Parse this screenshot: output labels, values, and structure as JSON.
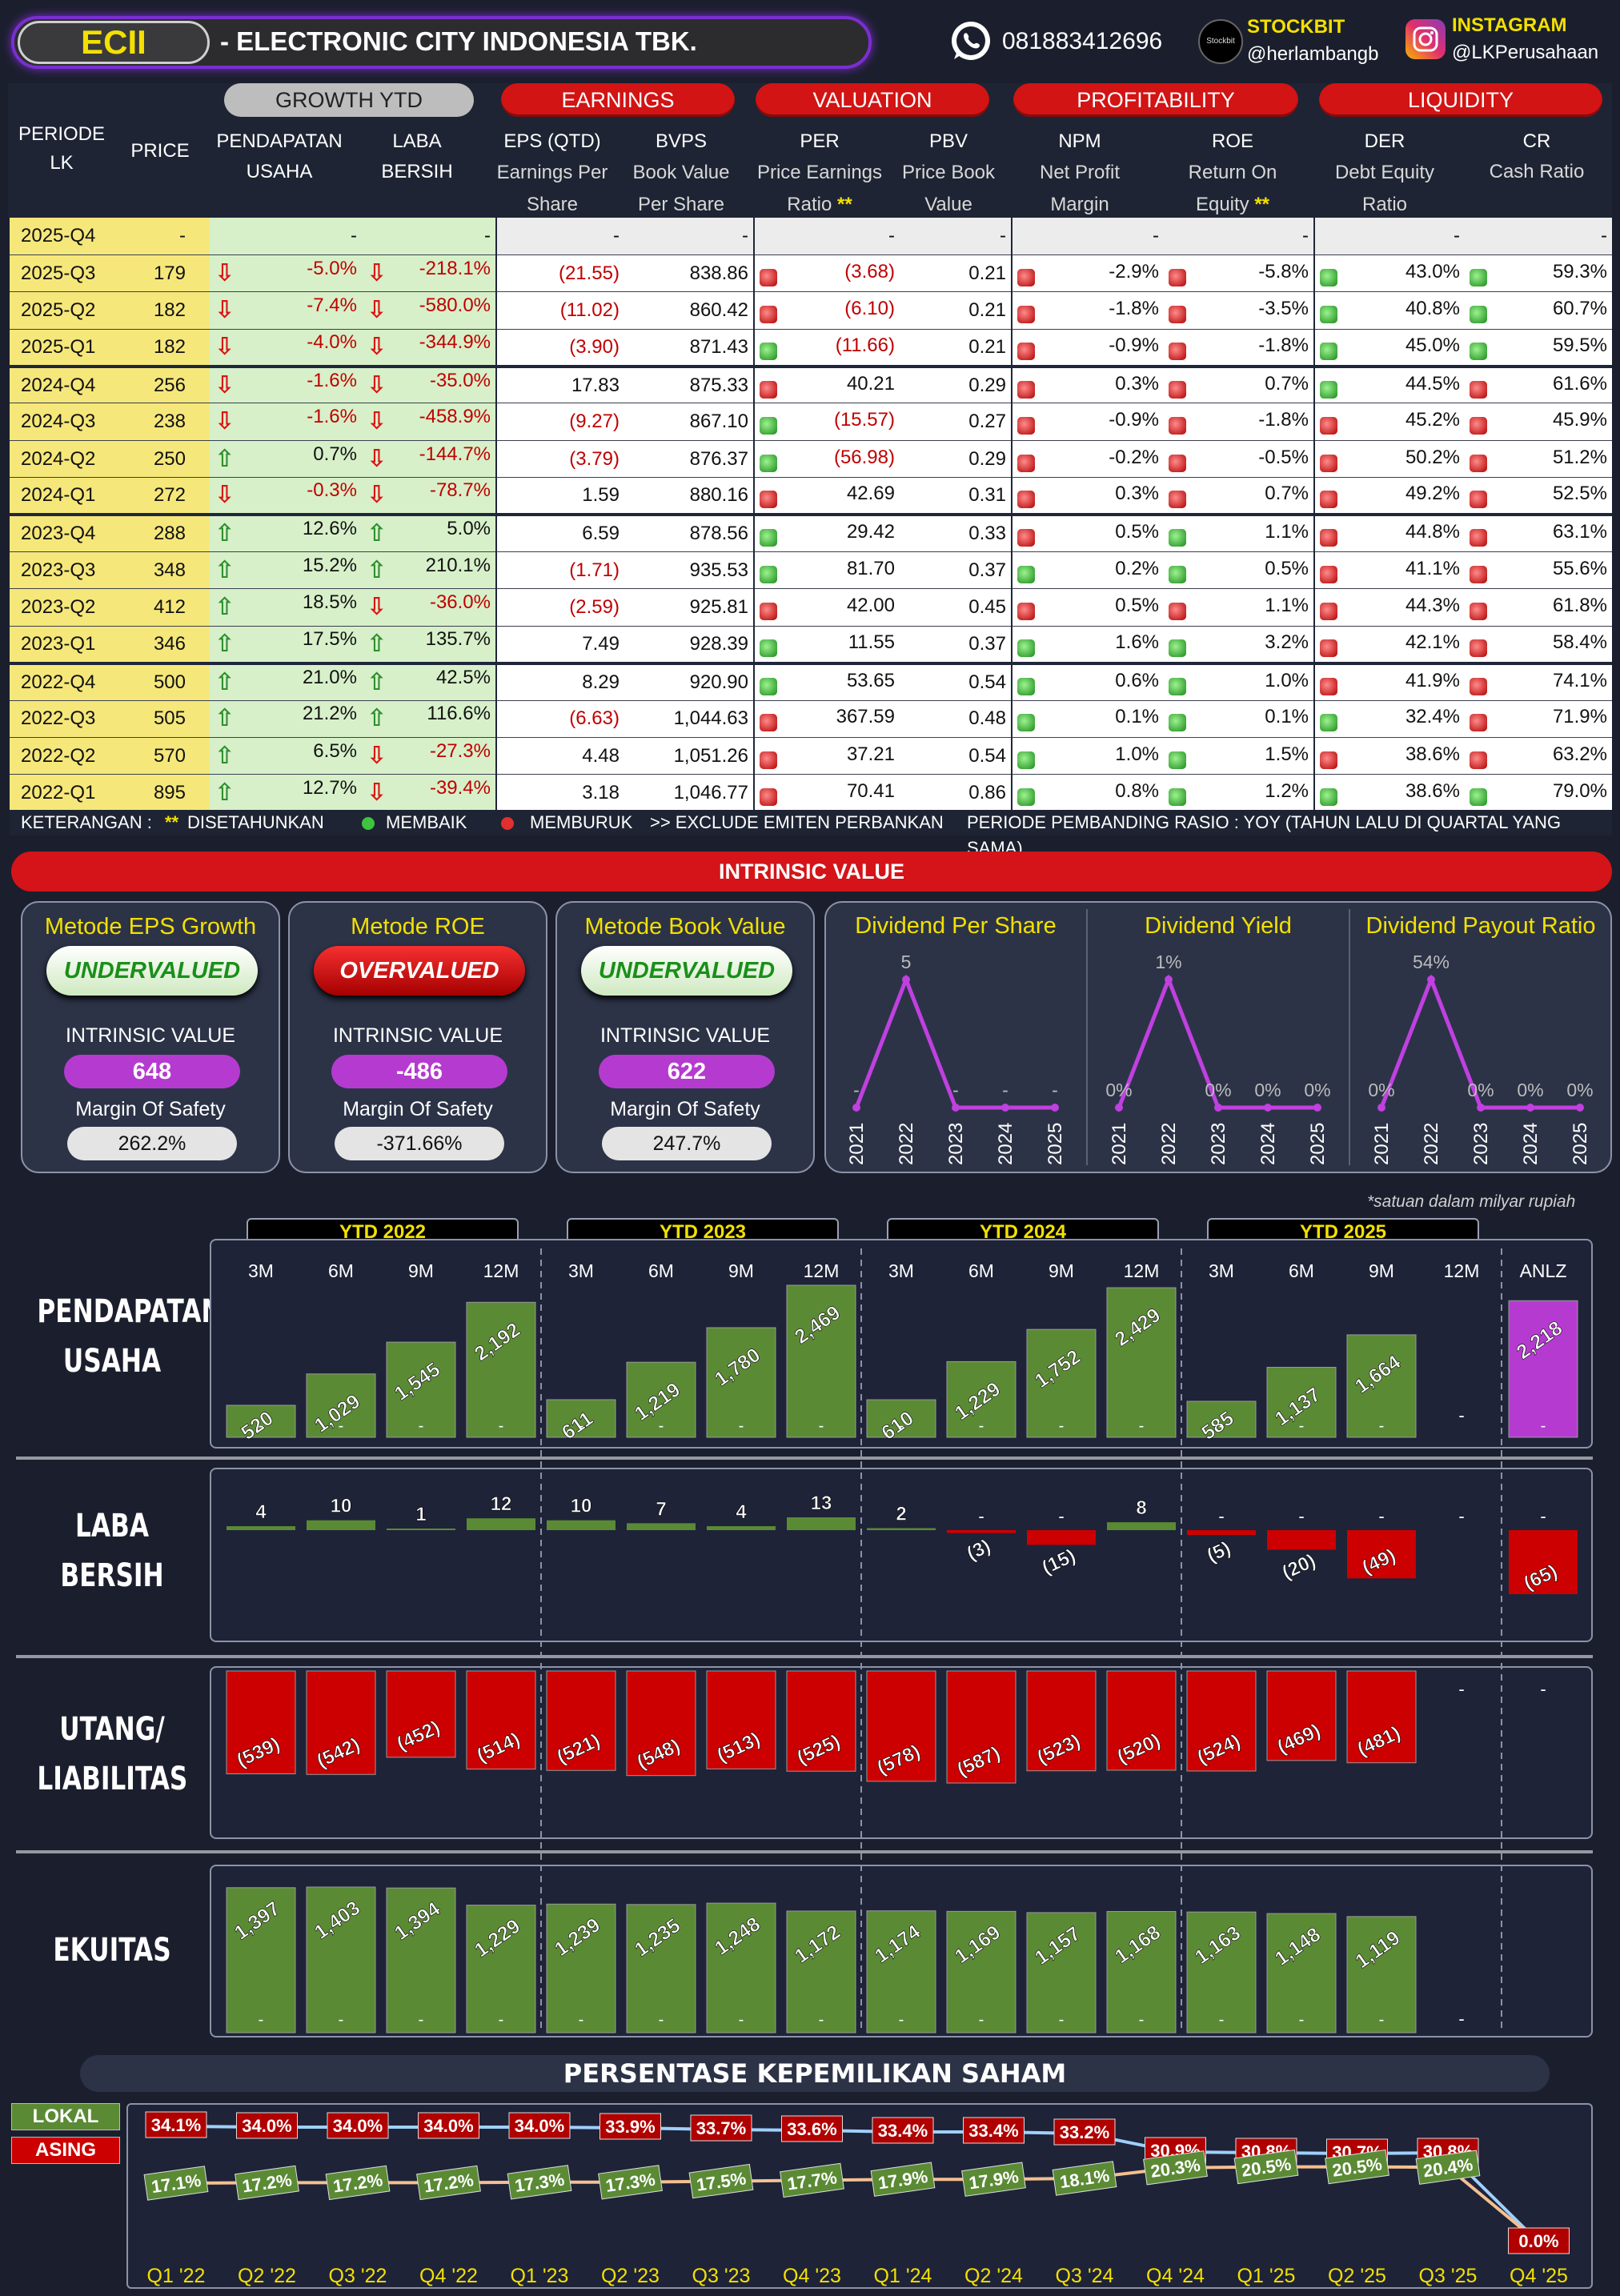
{
  "header": {
    "ticker": "ECII",
    "company": "-  ELECTRONIC CITY INDONESIA TBK.",
    "phone": "081883412696",
    "stockbit_label": "STOCKBIT",
    "stockbit_user": "@herlambangb",
    "stockbit_icon_text": "Stockbit",
    "instagram_label": "INSTAGRAM",
    "instagram_user": "@LKPerusahaan"
  },
  "table_header": {
    "periode": "PERIODE LK",
    "price": "PRICE",
    "groups": {
      "growth": "GROWTH YTD",
      "earnings": "EARNINGS",
      "valuation": "VALUATION",
      "profitability": "PROFITABILITY",
      "liquidity": "LIQUIDITY"
    },
    "cols": {
      "pendapatan": "PENDAPATAN USAHA",
      "laba": "LABA BERSIH",
      "eps": "EPS (QTD)",
      "eps_sub": "Earnings Per Share",
      "bvps": "BVPS",
      "bvps_sub": "Book Value Per Share",
      "per": "PER",
      "per_sub": "Price Earnings Ratio",
      "per_star": "**",
      "pbv": "PBV",
      "pbv_sub": "Price Book Value",
      "npm": "NPM",
      "npm_sub": "Net Profit Margin",
      "roe": "ROE",
      "roe_sub": "Return On Equity",
      "roe_star": "**",
      "der": "DER",
      "der_sub": "Debt Equity Ratio",
      "cr": "CR",
      "cr_sub": "Cash Ratio"
    }
  },
  "rows": [
    {
      "p": "2025-Q4",
      "price": "-",
      "g1": "-",
      "g1d": "",
      "g2": "-",
      "g2d": "",
      "eps": "-",
      "bvps": "-",
      "perd": "",
      "per": "-",
      "pbv": "-",
      "npmd": "",
      "npm": "-",
      "roed": "",
      "roe": "-",
      "derd": "",
      "der": "-",
      "crd": "",
      "cr": "-",
      "empty": true
    },
    {
      "p": "2025-Q3",
      "price": "179",
      "g1": "-5.0%",
      "g1d": "dn",
      "g2": "-218.1%",
      "g2d": "dn",
      "eps": "(21.55)",
      "bvps": "838.86",
      "perd": "r",
      "per": "(3.68)",
      "pbv": "0.21",
      "npmd": "r",
      "npm": "-2.9%",
      "roed": "r",
      "roe": "-5.8%",
      "derd": "g",
      "der": "43.0%",
      "crd": "g",
      "cr": "59.3%"
    },
    {
      "p": "2025-Q2",
      "price": "182",
      "g1": "-7.4%",
      "g1d": "dn",
      "g2": "-580.0%",
      "g2d": "dn",
      "eps": "(11.02)",
      "bvps": "860.42",
      "perd": "r",
      "per": "(6.10)",
      "pbv": "0.21",
      "npmd": "r",
      "npm": "-1.8%",
      "roed": "r",
      "roe": "-3.5%",
      "derd": "g",
      "der": "40.8%",
      "crd": "g",
      "cr": "60.7%"
    },
    {
      "p": "2025-Q1",
      "price": "182",
      "g1": "-4.0%",
      "g1d": "dn",
      "g2": "-344.9%",
      "g2d": "dn",
      "eps": "(3.90)",
      "bvps": "871.43",
      "perd": "g",
      "per": "(11.66)",
      "pbv": "0.21",
      "npmd": "r",
      "npm": "-0.9%",
      "roed": "r",
      "roe": "-1.8%",
      "derd": "g",
      "der": "45.0%",
      "crd": "g",
      "cr": "59.5%"
    },
    {
      "p": "2024-Q4",
      "price": "256",
      "g1": "-1.6%",
      "g1d": "dn",
      "g2": "-35.0%",
      "g2d": "dn",
      "eps": "17.83",
      "bvps": "875.33",
      "perd": "r",
      "per": "40.21",
      "pbv": "0.29",
      "npmd": "r",
      "npm": "0.3%",
      "roed": "r",
      "roe": "0.7%",
      "derd": "g",
      "der": "44.5%",
      "crd": "r",
      "cr": "61.6%",
      "sep": true
    },
    {
      "p": "2024-Q3",
      "price": "238",
      "g1": "-1.6%",
      "g1d": "dn",
      "g2": "-458.9%",
      "g2d": "dn",
      "eps": "(9.27)",
      "bvps": "867.10",
      "perd": "g",
      "per": "(15.57)",
      "pbv": "0.27",
      "npmd": "r",
      "npm": "-0.9%",
      "roed": "r",
      "roe": "-1.8%",
      "derd": "r",
      "der": "45.2%",
      "crd": "r",
      "cr": "45.9%"
    },
    {
      "p": "2024-Q2",
      "price": "250",
      "g1": "0.7%",
      "g1d": "up",
      "g2": "-144.7%",
      "g2d": "dn",
      "eps": "(3.79)",
      "bvps": "876.37",
      "perd": "g",
      "per": "(56.98)",
      "pbv": "0.29",
      "npmd": "r",
      "npm": "-0.2%",
      "roed": "r",
      "roe": "-0.5%",
      "derd": "r",
      "der": "50.2%",
      "crd": "r",
      "cr": "51.2%"
    },
    {
      "p": "2024-Q1",
      "price": "272",
      "g1": "-0.3%",
      "g1d": "dn",
      "g2": "-78.7%",
      "g2d": "dn",
      "eps": "1.59",
      "bvps": "880.16",
      "perd": "r",
      "per": "42.69",
      "pbv": "0.31",
      "npmd": "r",
      "npm": "0.3%",
      "roed": "r",
      "roe": "0.7%",
      "derd": "r",
      "der": "49.2%",
      "crd": "r",
      "cr": "52.5%"
    },
    {
      "p": "2023-Q4",
      "price": "288",
      "g1": "12.6%",
      "g1d": "up",
      "g2": "5.0%",
      "g2d": "up",
      "eps": "6.59",
      "bvps": "878.56",
      "perd": "g",
      "per": "29.42",
      "pbv": "0.33",
      "npmd": "r",
      "npm": "0.5%",
      "roed": "g",
      "roe": "1.1%",
      "derd": "r",
      "der": "44.8%",
      "crd": "r",
      "cr": "63.1%",
      "sep": true
    },
    {
      "p": "2023-Q3",
      "price": "348",
      "g1": "15.2%",
      "g1d": "up",
      "g2": "210.1%",
      "g2d": "up",
      "eps": "(1.71)",
      "bvps": "935.53",
      "perd": "g",
      "per": "81.70",
      "pbv": "0.37",
      "npmd": "g",
      "npm": "0.2%",
      "roed": "g",
      "roe": "0.5%",
      "derd": "r",
      "der": "41.1%",
      "crd": "r",
      "cr": "55.6%"
    },
    {
      "p": "2023-Q2",
      "price": "412",
      "g1": "18.5%",
      "g1d": "up",
      "g2": "-36.0%",
      "g2d": "dn",
      "eps": "(2.59)",
      "bvps": "925.81",
      "perd": "r",
      "per": "42.00",
      "pbv": "0.45",
      "npmd": "r",
      "npm": "0.5%",
      "roed": "r",
      "roe": "1.1%",
      "derd": "r",
      "der": "44.3%",
      "crd": "r",
      "cr": "61.8%"
    },
    {
      "p": "2023-Q1",
      "price": "346",
      "g1": "17.5%",
      "g1d": "up",
      "g2": "135.7%",
      "g2d": "up",
      "eps": "7.49",
      "bvps": "928.39",
      "perd": "g",
      "per": "11.55",
      "pbv": "0.37",
      "npmd": "g",
      "npm": "1.6%",
      "roed": "g",
      "roe": "3.2%",
      "derd": "r",
      "der": "42.1%",
      "crd": "r",
      "cr": "58.4%"
    },
    {
      "p": "2022-Q4",
      "price": "500",
      "g1": "21.0%",
      "g1d": "up",
      "g2": "42.5%",
      "g2d": "up",
      "eps": "8.29",
      "bvps": "920.90",
      "perd": "g",
      "per": "53.65",
      "pbv": "0.54",
      "npmd": "g",
      "npm": "0.6%",
      "roed": "g",
      "roe": "1.0%",
      "derd": "r",
      "der": "41.9%",
      "crd": "r",
      "cr": "74.1%",
      "sep": true
    },
    {
      "p": "2022-Q3",
      "price": "505",
      "g1": "21.2%",
      "g1d": "up",
      "g2": "116.6%",
      "g2d": "up",
      "eps": "(6.63)",
      "bvps": "1,044.63",
      "perd": "r",
      "per": "367.59",
      "pbv": "0.48",
      "npmd": "g",
      "npm": "0.1%",
      "roed": "g",
      "roe": "0.1%",
      "derd": "g",
      "der": "32.4%",
      "crd": "r",
      "cr": "71.9%"
    },
    {
      "p": "2022-Q2",
      "price": "570",
      "g1": "6.5%",
      "g1d": "up",
      "g2": "-27.3%",
      "g2d": "dn",
      "eps": "4.48",
      "bvps": "1,051.26",
      "perd": "r",
      "per": "37.21",
      "pbv": "0.54",
      "npmd": "g",
      "npm": "1.0%",
      "roed": "g",
      "roe": "1.5%",
      "derd": "r",
      "der": "38.6%",
      "crd": "r",
      "cr": "63.2%"
    },
    {
      "p": "2022-Q1",
      "price": "895",
      "g1": "12.7%",
      "g1d": "up",
      "g2": "-39.4%",
      "g2d": "dn",
      "eps": "3.18",
      "bvps": "1,046.77",
      "perd": "r",
      "per": "70.41",
      "pbv": "0.86",
      "npmd": "g",
      "npm": "0.8%",
      "roed": "g",
      "roe": "1.2%",
      "derd": "g",
      "der": "38.6%",
      "crd": "g",
      "cr": "79.0%"
    }
  ],
  "legend": {
    "keterangan": "KETERANGAN :",
    "star": "**",
    "disetahunkan": "DISETAHUNKAN",
    "membaik": "MEMBAIK",
    "memburuk": "MEMBURUK",
    "exclude": ">> EXCLUDE EMITEN PERBANKAN",
    "pembanding": "PERIODE PEMBANDING RASIO : YOY (TAHUN LALU DI QUARTAL YANG SAMA)"
  },
  "intrinsic": {
    "title": "INTRINSIC VALUE",
    "iv_label": "INTRINSIC VALUE",
    "ms_label": "Margin Of Safety",
    "methods": [
      {
        "title": "Metode EPS Growth",
        "status": "UNDERVALUED",
        "value": "648",
        "mos": "262.2%"
      },
      {
        "title": "Metode ROE",
        "status": "OVERVALUED",
        "value": "-486",
        "mos": "-371.66%"
      },
      {
        "title": "Metode Book Value",
        "status": "UNDERVALUED",
        "value": "622",
        "mos": "247.7%"
      }
    ],
    "dividend": [
      {
        "title": "Dividend Per Share",
        "years": [
          "2021",
          "2022",
          "2023",
          "2024",
          "2025"
        ],
        "values": [
          0,
          5,
          0,
          0,
          0
        ],
        "labels": [
          "-",
          "5",
          "-",
          "-",
          "-"
        ]
      },
      {
        "title": "Dividend Yield",
        "years": [
          "2021",
          "2022",
          "2023",
          "2024",
          "2025"
        ],
        "values": [
          0,
          1,
          0,
          0,
          0
        ],
        "labels": [
          "0%",
          "1%",
          "0%",
          "0%",
          "0%"
        ]
      },
      {
        "title": "Dividend Payout Ratio",
        "years": [
          "2021",
          "2022",
          "2023",
          "2024",
          "2025"
        ],
        "values": [
          0,
          54,
          0,
          0,
          0
        ],
        "labels": [
          "0%",
          "54%",
          "0%",
          "0%",
          "0%"
        ]
      }
    ],
    "unit_note": "*satuan dalam milyar rupiah"
  },
  "chart_data": [
    {
      "type": "bar",
      "title": "PENDAPATAN USAHA",
      "groups": [
        "YTD 2022",
        "YTD 2023",
        "YTD 2024",
        "YTD 2025",
        "ANLZ"
      ],
      "categories": [
        "3M",
        "6M",
        "9M",
        "12M",
        "3M",
        "6M",
        "9M",
        "12M",
        "3M",
        "6M",
        "9M",
        "12M",
        "3M",
        "6M",
        "9M",
        "12M",
        "ANLZ"
      ],
      "values": [
        520,
        1029,
        1545,
        2192,
        611,
        1219,
        1780,
        2469,
        610,
        1229,
        1752,
        2429,
        585,
        1137,
        1664,
        null,
        2218
      ],
      "labels": [
        "520",
        "1,029",
        "1,545",
        "2,192",
        "611",
        "1,219",
        "1,780",
        "2,469",
        "610",
        "1,229",
        "1,752",
        "2,429",
        "585",
        "1,137",
        "1,664",
        "-",
        "2,218"
      ]
    },
    {
      "type": "bar",
      "title": "LABA BERSIH",
      "values": [
        4,
        10,
        1,
        12,
        10,
        7,
        4,
        13,
        2,
        -3,
        -15,
        8,
        -5,
        -20,
        -49,
        null,
        -65
      ],
      "labels": [
        "4",
        "10",
        "1",
        "12",
        "10",
        "7",
        "4",
        "13",
        "2",
        "(3)",
        "(15)",
        "8",
        "(5)",
        "(20)",
        "(49)",
        "-",
        "(65)"
      ]
    },
    {
      "type": "bar",
      "title": "UTANG/ LIABILITAS",
      "values": [
        -539,
        -542,
        -452,
        -514,
        -521,
        -548,
        -513,
        -525,
        -578,
        -587,
        -523,
        -520,
        -524,
        -469,
        -481,
        null,
        null
      ],
      "labels": [
        "(539)",
        "(542)",
        "(452)",
        "(514)",
        "(521)",
        "(548)",
        "(513)",
        "(525)",
        "(578)",
        "(587)",
        "(523)",
        "(520)",
        "(524)",
        "(469)",
        "(481)",
        "-",
        "-"
      ]
    },
    {
      "type": "bar",
      "title": "EKUITAS",
      "values": [
        1397,
        1403,
        1394,
        1229,
        1239,
        1235,
        1248,
        1172,
        1174,
        1169,
        1157,
        1168,
        1163,
        1148,
        1119,
        null,
        null
      ],
      "labels": [
        "1,397",
        "1,403",
        "1,394",
        "1,229",
        "1,239",
        "1,235",
        "1,248",
        "1,172",
        "1,174",
        "1,169",
        "1,157",
        "1,168",
        "1,163",
        "1,148",
        "1,119",
        "-",
        ""
      ]
    },
    {
      "type": "line",
      "title": "PERSENTASE KEPEMILIKAN SAHAM",
      "x": [
        "Q1 '22",
        "Q2 '22",
        "Q3 '22",
        "Q4 '22",
        "Q1 '23",
        "Q2 '23",
        "Q3 '23",
        "Q4 '23",
        "Q1 '24",
        "Q2 '24",
        "Q3 '24",
        "Q4 '24",
        "Q1 '25",
        "Q2 '25",
        "Q3 '25",
        "Q4 '25"
      ],
      "series": [
        {
          "name": "LOKAL",
          "values": [
            17.1,
            17.2,
            17.2,
            17.2,
            17.3,
            17.3,
            17.5,
            17.7,
            17.9,
            17.9,
            18.1,
            20.3,
            20.5,
            20.5,
            20.4,
            0.0
          ]
        },
        {
          "name": "ASING",
          "values": [
            34.1,
            34.0,
            34.0,
            34.0,
            34.0,
            33.9,
            33.7,
            33.6,
            33.4,
            33.4,
            33.2,
            30.9,
            30.8,
            30.7,
            30.8,
            0.0
          ]
        }
      ],
      "lokal_labels": [
        "17.1%",
        "17.2%",
        "17.2%",
        "17.2%",
        "17.3%",
        "17.3%",
        "17.5%",
        "17.7%",
        "17.9%",
        "17.9%",
        "18.1%",
        "20.3%",
        "20.5%",
        "20.5%",
        "20.4%",
        ""
      ],
      "asing_labels": [
        "34.1%",
        "34.0%",
        "34.0%",
        "34.0%",
        "34.0%",
        "33.9%",
        "33.7%",
        "33.6%",
        "33.4%",
        "33.4%",
        "33.2%",
        "30.9%",
        "30.8%",
        "30.7%",
        "30.8%",
        "0.0%"
      ]
    }
  ],
  "colors": {
    "green": "#5b8a35",
    "red": "#cc0000",
    "purple": "#b53bd0",
    "yellow": "#f3e000"
  }
}
